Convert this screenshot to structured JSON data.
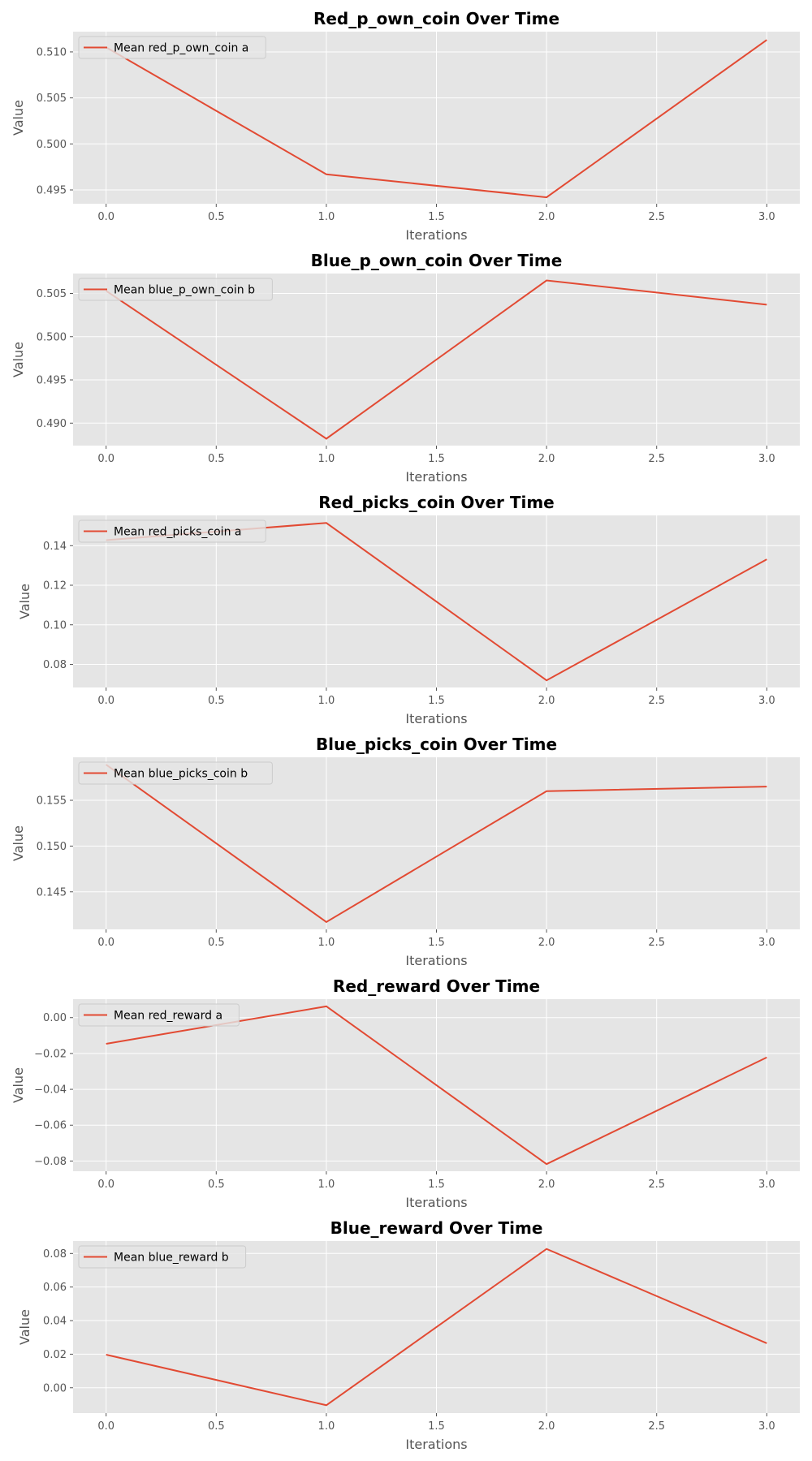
{
  "colors": {
    "figure_bg": "#ffffff",
    "axes_bg": "#e5e5e5",
    "grid": "#ffffff",
    "line": "#e24a33",
    "tick": "#555555",
    "legend_bg": "#e5e5e5",
    "legend_border": "#cccccc"
  },
  "chart_data": [
    {
      "type": "line",
      "title": "Red_p_own_coin Over Time",
      "xlabel": "Iterations",
      "ylabel": "Value",
      "x": [
        0,
        1,
        2,
        3
      ],
      "series": [
        {
          "name": "Mean red_p_own_coin a",
          "values": [
            0.5105,
            0.4967,
            0.4942,
            0.5113
          ]
        }
      ],
      "xlim": [
        -0.15,
        3.15
      ],
      "ylim": [
        0.4935,
        0.5122
      ],
      "xticks": [
        0.0,
        0.5,
        1.0,
        1.5,
        2.0,
        2.5,
        3.0
      ],
      "xtick_labels": [
        "0.0",
        "0.5",
        "1.0",
        "1.5",
        "2.0",
        "2.5",
        "3.0"
      ],
      "yticks": [
        0.495,
        0.5,
        0.505,
        0.51
      ],
      "ytick_labels": [
        "0.495",
        "0.500",
        "0.505",
        "0.510"
      ],
      "grid": true,
      "legend": "upper-left"
    },
    {
      "type": "line",
      "title": "Blue_p_own_coin Over Time",
      "xlabel": "Iterations",
      "ylabel": "Value",
      "x": [
        0,
        1,
        2,
        3
      ],
      "series": [
        {
          "name": "Mean blue_p_own_coin b",
          "values": [
            0.5053,
            0.4882,
            0.5065,
            0.5037
          ]
        }
      ],
      "xlim": [
        -0.15,
        3.15
      ],
      "ylim": [
        0.4874,
        0.5073
      ],
      "xticks": [
        0.0,
        0.5,
        1.0,
        1.5,
        2.0,
        2.5,
        3.0
      ],
      "xtick_labels": [
        "0.0",
        "0.5",
        "1.0",
        "1.5",
        "2.0",
        "2.5",
        "3.0"
      ],
      "yticks": [
        0.49,
        0.495,
        0.5,
        0.505
      ],
      "ytick_labels": [
        "0.490",
        "0.495",
        "0.500",
        "0.505"
      ],
      "grid": true,
      "legend": "upper-left"
    },
    {
      "type": "line",
      "title": "Red_picks_coin Over Time",
      "xlabel": "Iterations",
      "ylabel": "Value",
      "x": [
        0,
        1,
        2,
        3
      ],
      "series": [
        {
          "name": "Mean red_picks_coin a",
          "values": [
            0.1428,
            0.1515,
            0.0719,
            0.1331
          ]
        }
      ],
      "xlim": [
        -0.15,
        3.15
      ],
      "ylim": [
        0.0683,
        0.1553
      ],
      "xticks": [
        0.0,
        0.5,
        1.0,
        1.5,
        2.0,
        2.5,
        3.0
      ],
      "xtick_labels": [
        "0.0",
        "0.5",
        "1.0",
        "1.5",
        "2.0",
        "2.5",
        "3.0"
      ],
      "yticks": [
        0.08,
        0.1,
        0.12,
        0.14
      ],
      "ytick_labels": [
        "0.08",
        "0.10",
        "0.12",
        "0.14"
      ],
      "grid": true,
      "legend": "upper-left"
    },
    {
      "type": "line",
      "title": "Blue_picks_coin Over Time",
      "xlabel": "Iterations",
      "ylabel": "Value",
      "x": [
        0,
        1,
        2,
        3
      ],
      "series": [
        {
          "name": "Mean blue_picks_coin b",
          "values": [
            0.1589,
            0.1417,
            0.156,
            0.1565
          ]
        }
      ],
      "xlim": [
        -0.15,
        3.15
      ],
      "ylim": [
        0.1409,
        0.1597
      ],
      "xticks": [
        0.0,
        0.5,
        1.0,
        1.5,
        2.0,
        2.5,
        3.0
      ],
      "xtick_labels": [
        "0.0",
        "0.5",
        "1.0",
        "1.5",
        "2.0",
        "2.5",
        "3.0"
      ],
      "yticks": [
        0.145,
        0.15,
        0.155
      ],
      "ytick_labels": [
        "0.145",
        "0.150",
        "0.155"
      ],
      "grid": true,
      "legend": "upper-left"
    },
    {
      "type": "line",
      "title": "Red_reward Over Time",
      "xlabel": "Iterations",
      "ylabel": "Value",
      "x": [
        0,
        1,
        2,
        3
      ],
      "series": [
        {
          "name": "Mean red_reward a",
          "values": [
            -0.0146,
            0.0063,
            -0.0817,
            -0.0222
          ]
        }
      ],
      "xlim": [
        -0.15,
        3.15
      ],
      "ylim": [
        -0.0857,
        0.0103
      ],
      "xticks": [
        0.0,
        0.5,
        1.0,
        1.5,
        2.0,
        2.5,
        3.0
      ],
      "xtick_labels": [
        "0.0",
        "0.5",
        "1.0",
        "1.5",
        "2.0",
        "2.5",
        "3.0"
      ],
      "yticks": [
        -0.08,
        -0.06,
        -0.04,
        -0.02,
        0.0
      ],
      "ytick_labels": [
        "−0.08",
        "−0.06",
        "−0.04",
        "−0.02",
        "0.00"
      ],
      "grid": true,
      "legend": "upper-left"
    },
    {
      "type": "line",
      "title": "Blue_reward Over Time",
      "xlabel": "Iterations",
      "ylabel": "Value",
      "x": [
        0,
        1,
        2,
        3
      ],
      "series": [
        {
          "name": "Mean blue_reward b",
          "values": [
            0.0197,
            -0.0104,
            0.0827,
            0.0265
          ]
        }
      ],
      "xlim": [
        -0.15,
        3.15
      ],
      "ylim": [
        -0.0151,
        0.0874
      ],
      "xticks": [
        0.0,
        0.5,
        1.0,
        1.5,
        2.0,
        2.5,
        3.0
      ],
      "xtick_labels": [
        "0.0",
        "0.5",
        "1.0",
        "1.5",
        "2.0",
        "2.5",
        "3.0"
      ],
      "yticks": [
        0.0,
        0.02,
        0.04,
        0.06,
        0.08
      ],
      "ytick_labels": [
        "0.00",
        "0.02",
        "0.04",
        "0.06",
        "0.08"
      ],
      "grid": true,
      "legend": "upper-left"
    }
  ]
}
